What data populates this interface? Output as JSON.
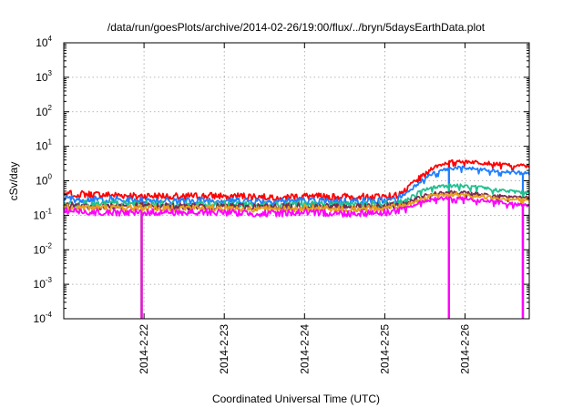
{
  "chart_data": {
    "type": "line",
    "title": "/data/run/goesPlots/archive/2014-02-26/19:00/flux/../bryn/5daysEarthData.plot",
    "xlabel": "Coordinated Universal Time (UTC)",
    "ylabel": "cSv/day",
    "y_scale": "log",
    "ylim": [
      0.0001,
      10000
    ],
    "y_ticks": [
      {
        "base": "10",
        "exp": "4"
      },
      {
        "base": "10",
        "exp": "3"
      },
      {
        "base": "10",
        "exp": "2"
      },
      {
        "base": "10",
        "exp": "1"
      },
      {
        "base": "10",
        "exp": "0"
      },
      {
        "base": "10",
        "exp": "-1"
      },
      {
        "base": "10",
        "exp": "-2"
      },
      {
        "base": "10",
        "exp": "-3"
      },
      {
        "base": "10",
        "exp": "-4"
      }
    ],
    "x_ticks": [
      "2014-2-22",
      "2014-2-23",
      "2014-2-24",
      "2014-2-25",
      "2014-2-26"
    ],
    "xlim_days": [
      21.0,
      26.8
    ],
    "grid": true,
    "legend": "none",
    "series": [
      {
        "color": "#ff0000",
        "x": [
          21.0,
          21.5,
          22.0,
          22.5,
          23.0,
          23.5,
          24.0,
          24.5,
          25.0,
          25.15,
          25.3,
          25.45,
          25.6,
          25.75,
          25.9,
          26.1,
          26.3,
          26.5,
          26.8
        ],
        "y": [
          0.42,
          0.38,
          0.36,
          0.35,
          0.36,
          0.34,
          0.35,
          0.34,
          0.35,
          0.37,
          0.7,
          1.4,
          2.4,
          3.2,
          3.8,
          3.5,
          3.2,
          2.9,
          2.6
        ]
      },
      {
        "color": "#1f7fff",
        "x": [
          21.0,
          21.5,
          22.0,
          22.5,
          23.0,
          23.5,
          24.0,
          24.5,
          25.0,
          25.15,
          25.3,
          25.45,
          25.6,
          25.75,
          25.9,
          26.1,
          26.3,
          26.5,
          26.8
        ],
        "y": [
          0.3,
          0.28,
          0.27,
          0.26,
          0.27,
          0.25,
          0.26,
          0.25,
          0.26,
          0.28,
          0.5,
          1.0,
          1.6,
          2.1,
          2.4,
          2.2,
          2.0,
          1.8,
          1.6
        ]
      },
      {
        "color": "#20c090",
        "x": [
          21.0,
          21.5,
          22.0,
          22.5,
          23.0,
          23.5,
          24.0,
          24.5,
          25.0,
          25.15,
          25.3,
          25.45,
          25.6,
          25.75,
          25.9,
          26.1,
          26.3,
          26.5,
          26.8
        ],
        "y": [
          0.22,
          0.21,
          0.21,
          0.2,
          0.21,
          0.2,
          0.21,
          0.2,
          0.21,
          0.22,
          0.3,
          0.5,
          0.65,
          0.72,
          0.72,
          0.66,
          0.58,
          0.5,
          0.45
        ]
      },
      {
        "color": "#7b2a52",
        "x": [
          21.0,
          21.5,
          22.0,
          22.5,
          23.0,
          23.5,
          24.0,
          24.5,
          25.0,
          25.15,
          25.3,
          25.45,
          25.6,
          25.75,
          25.9,
          26.1,
          26.3,
          26.5,
          26.8
        ],
        "y": [
          0.19,
          0.18,
          0.18,
          0.18,
          0.18,
          0.17,
          0.18,
          0.17,
          0.18,
          0.19,
          0.24,
          0.34,
          0.42,
          0.46,
          0.46,
          0.42,
          0.38,
          0.34,
          0.32
        ]
      },
      {
        "color": "#e6a020",
        "x": [
          21.0,
          21.5,
          22.0,
          22.5,
          23.0,
          23.5,
          24.0,
          24.5,
          25.0,
          25.15,
          25.3,
          25.45,
          25.6,
          25.75,
          25.9,
          26.1,
          26.3,
          26.5,
          26.8
        ],
        "y": [
          0.17,
          0.16,
          0.16,
          0.16,
          0.16,
          0.15,
          0.16,
          0.15,
          0.16,
          0.17,
          0.21,
          0.3,
          0.37,
          0.4,
          0.4,
          0.37,
          0.33,
          0.3,
          0.28
        ]
      },
      {
        "color": "#ff00ff",
        "x": [
          21.0,
          21.5,
          22.0,
          22.5,
          23.0,
          23.5,
          24.0,
          24.5,
          25.0,
          25.15,
          25.3,
          25.45,
          25.6,
          25.75,
          25.9,
          26.1,
          26.3,
          26.5,
          26.8
        ],
        "y": [
          0.13,
          0.12,
          0.12,
          0.12,
          0.12,
          0.11,
          0.12,
          0.11,
          0.12,
          0.13,
          0.17,
          0.24,
          0.29,
          0.31,
          0.31,
          0.28,
          0.25,
          0.22,
          0.2
        ]
      }
    ],
    "dropouts_days": [
      21.97,
      25.8,
      26.72
    ]
  }
}
